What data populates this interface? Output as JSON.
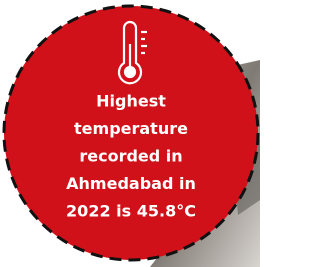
{
  "caption": {
    "lines": [
      "Highest",
      "temperature",
      "recorded in",
      "Ahmedabad in",
      "2022 is 45.8°C"
    ]
  }
}
